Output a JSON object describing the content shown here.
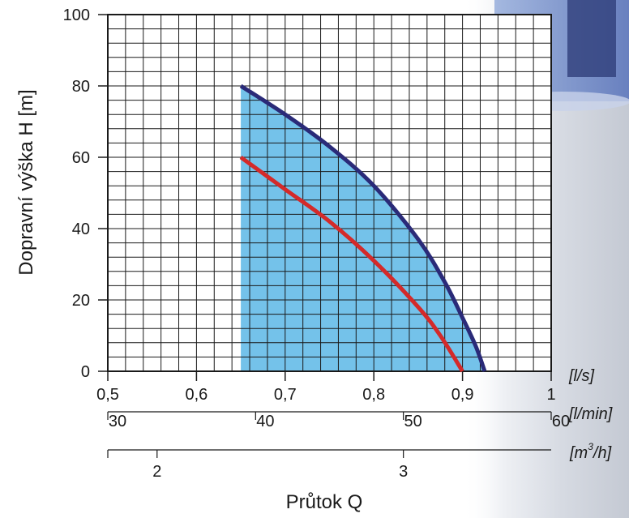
{
  "chart_data": {
    "type": "line",
    "title": "",
    "ylabel": "Dopravní výška H [m]",
    "xlabel": "Průtok Q",
    "x_unit_primary": "[l/s]",
    "x_unit_secondary": "[l/min]",
    "x_unit_tertiary_base": "[m",
    "x_unit_tertiary_sup": "3",
    "x_unit_tertiary_end": "/h]",
    "xlim": [
      0.5,
      1.0
    ],
    "ylim": [
      0,
      100
    ],
    "grid": true,
    "y_ticks": [
      "0",
      "20",
      "40",
      "60",
      "80",
      "100"
    ],
    "y_tick_values": [
      0,
      20,
      40,
      60,
      80,
      100
    ],
    "x_ticks_ls": [
      "0,5",
      "0,6",
      "0,7",
      "0,8",
      "0,9",
      "1"
    ],
    "x_tick_values_ls": [
      0.5,
      0.6,
      0.7,
      0.8,
      0.9,
      1.0
    ],
    "x_ticks_lmin": [
      "30",
      "40",
      "50",
      "60"
    ],
    "x_tick_values_lmin": [
      30,
      40,
      50,
      60
    ],
    "x_ticks_m3h": [
      "2",
      "3"
    ],
    "x_tick_values_m3h": [
      2,
      3
    ],
    "operating_range": {
      "x_start": 0.65,
      "color": "#74c2ea"
    },
    "series": [
      {
        "color": "#2a2a78",
        "x": [
          0.65,
          0.7,
          0.75,
          0.8,
          0.85,
          0.88,
          0.9,
          0.915,
          0.925
        ],
        "y": [
          80,
          72,
          63,
          52,
          37,
          25,
          15,
          7,
          0
        ]
      },
      {
        "color": "#d42a2a",
        "x": [
          0.65,
          0.7,
          0.75,
          0.8,
          0.85,
          0.875,
          0.9
        ],
        "y": [
          60,
          51,
          42,
          31,
          18,
          10,
          0
        ]
      }
    ]
  }
}
